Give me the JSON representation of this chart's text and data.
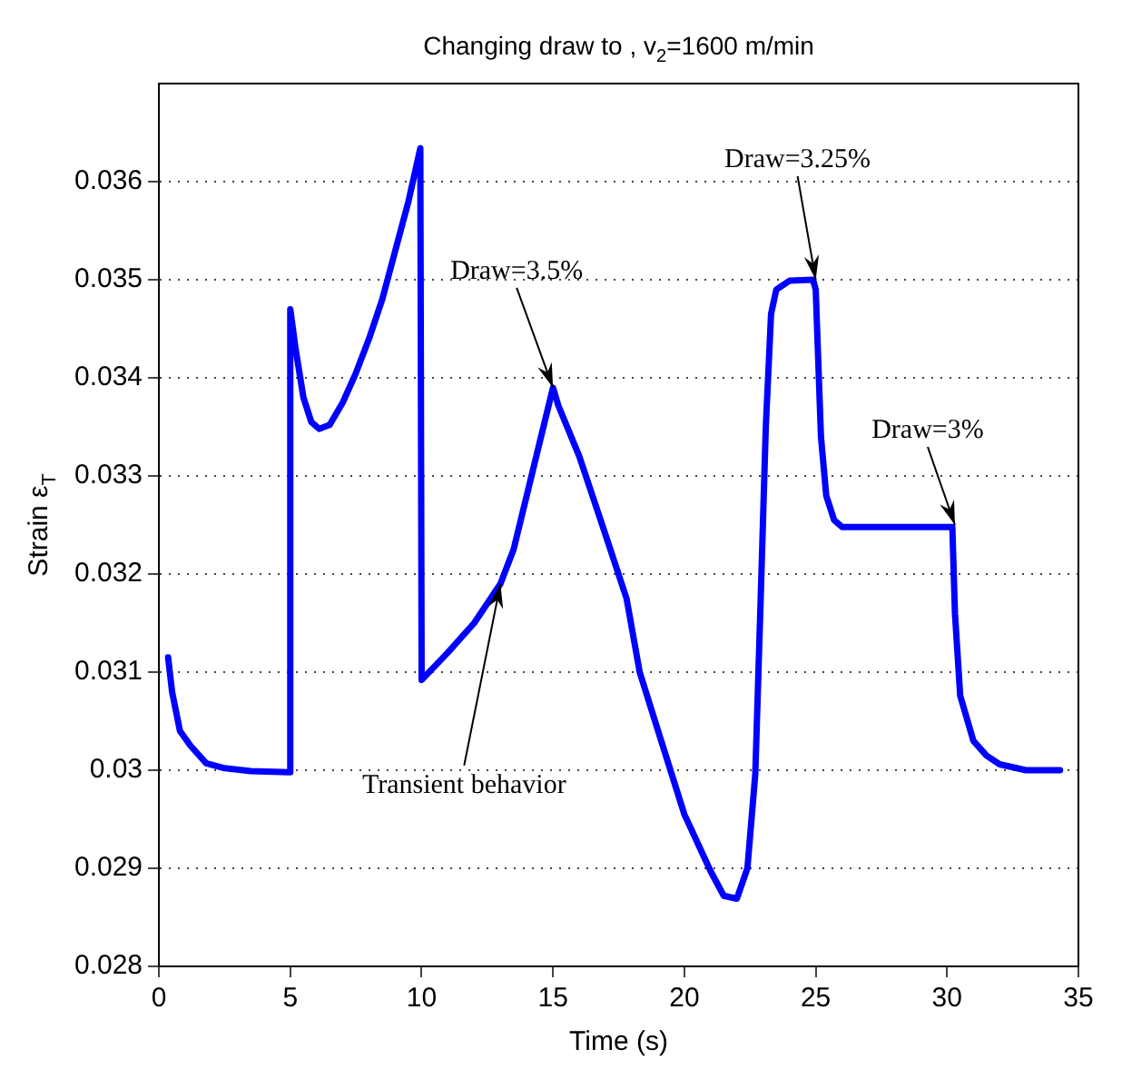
{
  "chart_data": {
    "type": "line",
    "title": "Changing draw to , v$_{2}$=1600 m/min",
    "xlabel": "Time (s)",
    "ylabel": "Strain ε$_{T}$",
    "xlim": [
      0,
      35
    ],
    "xticks": [
      0,
      5,
      10,
      15,
      20,
      25,
      30,
      35
    ],
    "ylim": [
      0.028,
      0.037
    ],
    "yticks": [
      0.028,
      0.029,
      0.03,
      0.031,
      0.032,
      0.033,
      0.034,
      0.035,
      0.036
    ],
    "grid": "y",
    "legend": false,
    "marker": "none",
    "line_style": "solid",
    "series": [
      {
        "color": "#0000ff",
        "x": [
          0.35,
          0.5,
          0.8,
          1.2,
          1.8,
          2.5,
          3.5,
          4.95,
          5.0,
          5.2,
          5.5,
          5.8,
          6.1,
          6.5,
          7,
          7.5,
          8,
          8.5,
          9,
          9.5,
          9.95,
          10.0,
          11,
          12,
          13,
          13.5,
          14,
          14.5,
          15,
          15.2,
          16,
          17,
          17.8,
          18.3,
          19,
          20,
          21,
          21.5,
          22,
          22.4,
          22.7,
          22.9,
          23.1,
          23.3,
          23.5,
          24,
          24.9,
          25,
          25.2,
          25.4,
          25.7,
          26,
          28,
          30.2,
          30.3,
          30.5,
          31,
          31.5,
          32,
          33,
          34.3
        ],
        "values": [
          0.03115,
          0.0308,
          0.0304,
          0.03025,
          0.03007,
          0.03002,
          0.02999,
          0.02998,
          0.0347,
          0.0343,
          0.0338,
          0.03355,
          0.03348,
          0.03352,
          0.03375,
          0.03405,
          0.0344,
          0.0348,
          0.0353,
          0.0358,
          0.03634,
          0.03092,
          0.0312,
          0.0315,
          0.0319,
          0.03225,
          0.0328,
          0.03335,
          0.0339,
          0.03372,
          0.0332,
          0.0324,
          0.03175,
          0.031,
          0.0304,
          0.02955,
          0.02897,
          0.02872,
          0.02869,
          0.029,
          0.02996,
          0.0317,
          0.0335,
          0.03465,
          0.0349,
          0.03499,
          0.035,
          0.0349,
          0.0334,
          0.0328,
          0.03255,
          0.03248,
          0.03248,
          0.03248,
          0.0316,
          0.03076,
          0.0303,
          0.03015,
          0.03006,
          0.03,
          0.03
        ]
      }
    ],
    "annotations": [
      {
        "text": "Draw=3.5%",
        "x": 15,
        "y": 0.0339
      },
      {
        "text": "Draw=3.25%",
        "x": 25,
        "y": 0.035
      },
      {
        "text": "Draw=3%",
        "x": 30.3,
        "y": 0.0325
      },
      {
        "text": "Transient behavior",
        "x": 13,
        "y": 0.0319
      }
    ]
  }
}
